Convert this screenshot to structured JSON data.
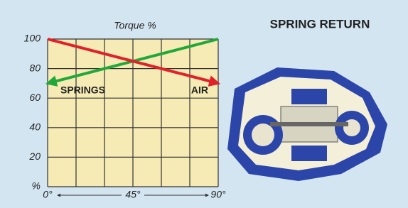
{
  "chart_data": {
    "type": "line",
    "title": "SPRING RETURN",
    "ylabel": "Torque %",
    "x": [
      0,
      90
    ],
    "series": [
      {
        "name": "SPRINGS",
        "color": "#22a83a",
        "values": [
          70,
          100
        ]
      },
      {
        "name": "AIR",
        "color": "#e0202a",
        "values": [
          100,
          70
        ]
      }
    ],
    "xlim": [
      0,
      90
    ],
    "xticks": [
      {
        "value": 0,
        "label": "0°"
      },
      {
        "value": 45,
        "label": "45°"
      },
      {
        "value": 90,
        "label": "90°"
      }
    ],
    "x_grid": [
      15,
      30,
      60,
      75
    ],
    "ylim": [
      0,
      100
    ],
    "yticks": [
      {
        "value": 0,
        "label": "%"
      },
      20,
      40,
      60,
      80,
      100
    ],
    "grid": true
  }
}
